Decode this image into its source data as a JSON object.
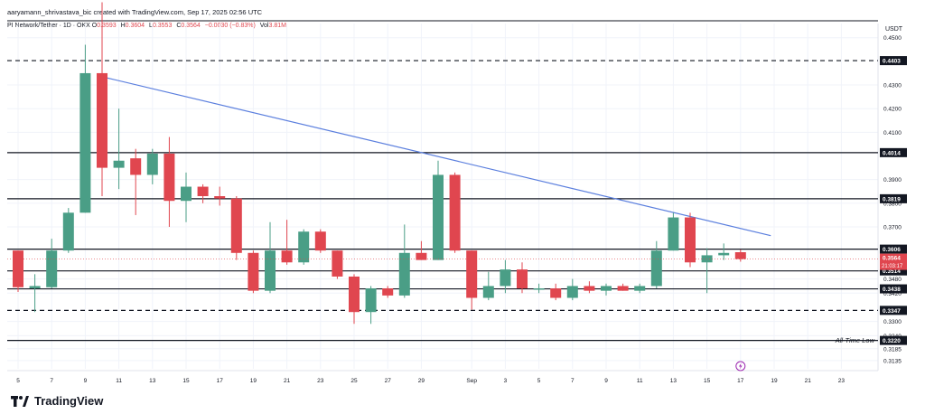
{
  "header": {
    "author_line": "aaryamann_shrivastava_bic created with TradingView.com, Sep 17, 2025 02:56 UTC"
  },
  "legend": {
    "symbol": "PI Network/Tether · 1D · OKX",
    "o_label": "O",
    "o_value": "0.3593",
    "h_label": "H",
    "h_value": "0.3604",
    "l_label": "L",
    "l_value": "0.3553",
    "c_label": "C",
    "c_value": "0.3564",
    "change": "−0.0030 (−0.83%)",
    "vol_label": "Vol",
    "vol_value": "3.81M"
  },
  "axis": {
    "currency": "USDT"
  },
  "brand": {
    "name": "TradingView"
  },
  "colors": {
    "up": "#4a9e86",
    "down": "#e0464f",
    "trendline": "#5b7fde",
    "level": "#131722"
  },
  "chart_data": {
    "type": "candlestick",
    "title": "",
    "y_axis": {
      "range": [
        0.31,
        0.456
      ],
      "ticks": [
        0.45,
        0.43,
        0.42,
        0.41,
        0.39,
        0.38,
        0.37,
        0.348,
        0.342,
        0.33,
        0.324,
        0.3185,
        0.3135
      ],
      "tick_labels": [
        "0.4500",
        "0.4300",
        "0.4200",
        "0.4100",
        "0.3900",
        "0.3800",
        "0.3700",
        "0.3480",
        "0.3420",
        "0.3300",
        "0.3240",
        "0.3185",
        "0.3135"
      ]
    },
    "x_axis": {
      "labels": [
        {
          "day": 5,
          "label": "5"
        },
        {
          "day": 7,
          "label": "7"
        },
        {
          "day": 9,
          "label": "9"
        },
        {
          "day": 11,
          "label": "11"
        },
        {
          "day": 13,
          "label": "13"
        },
        {
          "day": 15,
          "label": "15"
        },
        {
          "day": 17,
          "label": "17"
        },
        {
          "day": 19,
          "label": "19"
        },
        {
          "day": 21,
          "label": "21"
        },
        {
          "day": 23,
          "label": "23"
        },
        {
          "day": 25,
          "label": "25"
        },
        {
          "day": 27,
          "label": "27"
        },
        {
          "day": 29,
          "label": "29"
        },
        {
          "day": 32,
          "label": "Sep"
        },
        {
          "day": 34,
          "label": "3"
        },
        {
          "day": 36,
          "label": "5"
        },
        {
          "day": 38,
          "label": "7"
        },
        {
          "day": 40,
          "label": "9"
        },
        {
          "day": 42,
          "label": "11"
        },
        {
          "day": 44,
          "label": "13"
        },
        {
          "day": 46,
          "label": "15"
        },
        {
          "day": 48,
          "label": "17"
        },
        {
          "day": 50,
          "label": "19"
        },
        {
          "day": 52,
          "label": "21"
        },
        {
          "day": 54,
          "label": "23"
        }
      ]
    },
    "candles": [
      {
        "day": 5,
        "open": 0.36,
        "high": 0.36,
        "low": 0.3425,
        "close": 0.3445
      },
      {
        "day": 6,
        "open": 0.344,
        "high": 0.35,
        "low": 0.334,
        "close": 0.345
      },
      {
        "day": 7,
        "open": 0.3445,
        "high": 0.365,
        "low": 0.344,
        "close": 0.36
      },
      {
        "day": 8,
        "open": 0.36,
        "high": 0.378,
        "low": 0.359,
        "close": 0.376
      },
      {
        "day": 9,
        "open": 0.376,
        "high": 0.447,
        "low": 0.376,
        "close": 0.435
      },
      {
        "day": 10,
        "open": 0.435,
        "high": 0.465,
        "low": 0.383,
        "close": 0.395
      },
      {
        "day": 11,
        "open": 0.395,
        "high": 0.42,
        "low": 0.386,
        "close": 0.398
      },
      {
        "day": 12,
        "open": 0.399,
        "high": 0.403,
        "low": 0.375,
        "close": 0.392
      },
      {
        "day": 13,
        "open": 0.392,
        "high": 0.403,
        "low": 0.388,
        "close": 0.401
      },
      {
        "day": 14,
        "open": 0.401,
        "high": 0.408,
        "low": 0.37,
        "close": 0.381
      },
      {
        "day": 15,
        "open": 0.381,
        "high": 0.393,
        "low": 0.372,
        "close": 0.387
      },
      {
        "day": 16,
        "open": 0.387,
        "high": 0.388,
        "low": 0.38,
        "close": 0.383
      },
      {
        "day": 17,
        "open": 0.383,
        "high": 0.387,
        "low": 0.379,
        "close": 0.382
      },
      {
        "day": 18,
        "open": 0.382,
        "high": 0.383,
        "low": 0.356,
        "close": 0.359
      },
      {
        "day": 19,
        "open": 0.359,
        "high": 0.36,
        "low": 0.342,
        "close": 0.343
      },
      {
        "day": 20,
        "open": 0.343,
        "high": 0.372,
        "low": 0.342,
        "close": 0.36
      },
      {
        "day": 21,
        "open": 0.36,
        "high": 0.373,
        "low": 0.354,
        "close": 0.355
      },
      {
        "day": 22,
        "open": 0.355,
        "high": 0.369,
        "low": 0.354,
        "close": 0.368
      },
      {
        "day": 23,
        "open": 0.368,
        "high": 0.369,
        "low": 0.359,
        "close": 0.36
      },
      {
        "day": 24,
        "open": 0.36,
        "high": 0.36,
        "low": 0.348,
        "close": 0.349
      },
      {
        "day": 25,
        "open": 0.349,
        "high": 0.35,
        "low": 0.329,
        "close": 0.334
      },
      {
        "day": 26,
        "open": 0.334,
        "high": 0.345,
        "low": 0.329,
        "close": 0.344
      },
      {
        "day": 27,
        "open": 0.344,
        "high": 0.345,
        "low": 0.34,
        "close": 0.341
      },
      {
        "day": 28,
        "open": 0.341,
        "high": 0.371,
        "low": 0.34,
        "close": 0.359
      },
      {
        "day": 29,
        "open": 0.359,
        "high": 0.364,
        "low": 0.356,
        "close": 0.356
      },
      {
        "day": 30,
        "open": 0.356,
        "high": 0.398,
        "low": 0.356,
        "close": 0.392
      },
      {
        "day": 31,
        "open": 0.392,
        "high": 0.393,
        "low": 0.359,
        "close": 0.36
      },
      {
        "day": 32,
        "open": 0.36,
        "high": 0.36,
        "low": 0.335,
        "close": 0.34
      },
      {
        "day": 33,
        "open": 0.34,
        "high": 0.351,
        "low": 0.339,
        "close": 0.345
      },
      {
        "day": 34,
        "open": 0.345,
        "high": 0.356,
        "low": 0.342,
        "close": 0.352
      },
      {
        "day": 35,
        "open": 0.352,
        "high": 0.355,
        "low": 0.342,
        "close": 0.344
      },
      {
        "day": 36,
        "open": 0.344,
        "high": 0.346,
        "low": 0.342,
        "close": 0.344
      },
      {
        "day": 37,
        "open": 0.344,
        "high": 0.346,
        "low": 0.339,
        "close": 0.34
      },
      {
        "day": 38,
        "open": 0.34,
        "high": 0.348,
        "low": 0.339,
        "close": 0.345
      },
      {
        "day": 39,
        "open": 0.345,
        "high": 0.347,
        "low": 0.342,
        "close": 0.343
      },
      {
        "day": 40,
        "open": 0.343,
        "high": 0.346,
        "low": 0.341,
        "close": 0.345
      },
      {
        "day": 41,
        "open": 0.345,
        "high": 0.346,
        "low": 0.343,
        "close": 0.343
      },
      {
        "day": 42,
        "open": 0.343,
        "high": 0.346,
        "low": 0.342,
        "close": 0.345
      },
      {
        "day": 43,
        "open": 0.345,
        "high": 0.364,
        "low": 0.344,
        "close": 0.36
      },
      {
        "day": 44,
        "open": 0.36,
        "high": 0.376,
        "low": 0.36,
        "close": 0.374
      },
      {
        "day": 45,
        "open": 0.374,
        "high": 0.376,
        "low": 0.353,
        "close": 0.355
      },
      {
        "day": 46,
        "open": 0.355,
        "high": 0.361,
        "low": 0.342,
        "close": 0.358
      },
      {
        "day": 47,
        "open": 0.358,
        "high": 0.363,
        "low": 0.356,
        "close": 0.359
      },
      {
        "day": 48,
        "open": 0.3593,
        "high": 0.3604,
        "low": 0.3553,
        "close": 0.3564
      }
    ],
    "trendline": {
      "from": {
        "day": 10,
        "price": 0.4335
      },
      "to": {
        "day": 49.8,
        "price": 0.3663
      }
    },
    "levels": [
      {
        "price": 0.4403,
        "label": "0.4403",
        "style": "dashed"
      },
      {
        "price": 0.4014,
        "label": "0.4014",
        "style": "solid"
      },
      {
        "price": 0.3819,
        "label": "0.3819",
        "style": "solid"
      },
      {
        "price": 0.3606,
        "label": "0.3606",
        "style": "solid"
      },
      {
        "price": 0.3514,
        "label": "0.3514",
        "style": "solid"
      },
      {
        "price": 0.3438,
        "label": "0.3438",
        "style": "solid"
      },
      {
        "price": 0.3347,
        "label": "0.3347",
        "style": "dashed"
      },
      {
        "price": 0.322,
        "label": "0.3220",
        "style": "solid",
        "annotation": "All-Time Low"
      }
    ],
    "current_price": {
      "price": 0.3564,
      "label": "0.3564",
      "countdown": "21:03:17"
    }
  }
}
